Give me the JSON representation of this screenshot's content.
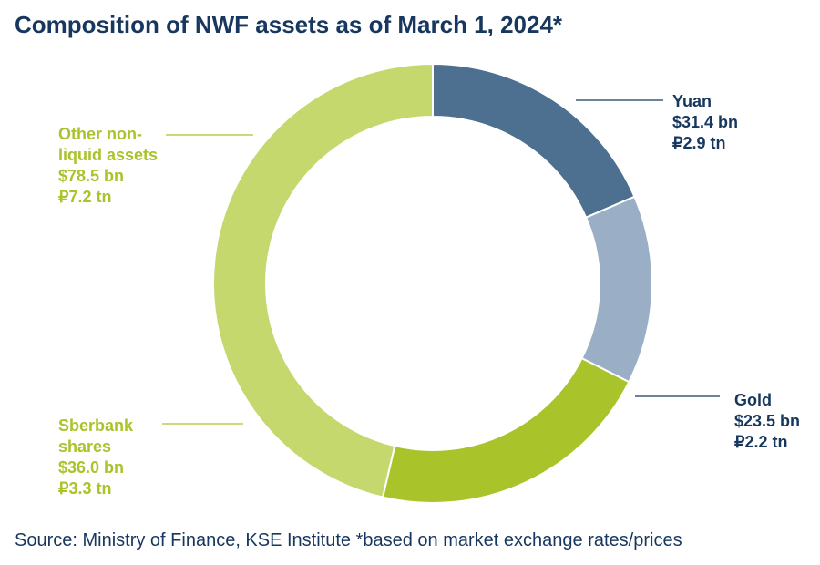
{
  "title": "Composition of NWF assets as of March 1, 2024*",
  "source": "Source: Ministry of Finance, KSE Institute *based on market exchange rates/prices",
  "chart_data": {
    "type": "pie",
    "subtype": "donut",
    "slices": [
      {
        "name": "Yuan",
        "label_lines": [
          "Yuan"
        ],
        "value": 31.4,
        "usd": "$31.4 bn",
        "rub": "₽2.9 tn",
        "color": "#4e7090",
        "text_color": "#17375e"
      },
      {
        "name": "Gold",
        "label_lines": [
          "Gold"
        ],
        "value": 23.5,
        "usd": "$23.5 bn",
        "rub": "₽2.2 tn",
        "color": "#9aafc5",
        "text_color": "#17375e"
      },
      {
        "name": "Sberbank shares",
        "label_lines": [
          "Sberbank",
          "shares"
        ],
        "value": 36.0,
        "usd": "$36.0 bn",
        "rub": "₽3.3 tn",
        "color": "#a8c42a",
        "text_color": "#a8c42a"
      },
      {
        "name": "Other non-liquid assets",
        "label_lines": [
          "Other non-",
          "liquid assets"
        ],
        "value": 78.5,
        "usd": "$78.5 bn",
        "rub": "₽7.2 tn",
        "color": "#c4d86e",
        "text_color": "#a8c42a"
      }
    ]
  }
}
